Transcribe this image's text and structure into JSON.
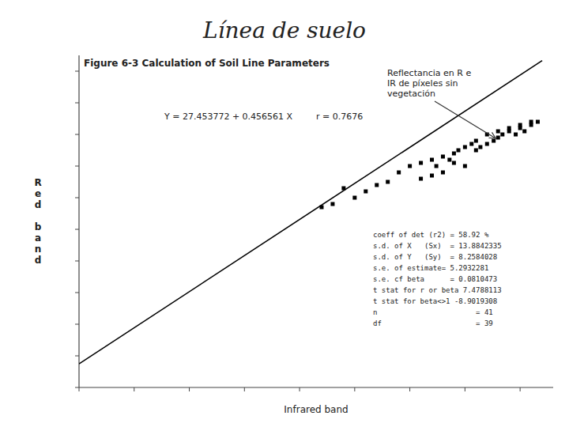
{
  "chart_data": {
    "type": "scatter",
    "title": "Línea de suelo",
    "subtitle": "Figure 6-3  Calculation of Soil Line Parameters",
    "x_label": "Infrared band",
    "y_label": "R\ne\nd\n\nb\na\nn\nd",
    "annotations": [
      {
        "text": "Y = 27.453772 + 0.456561 X"
      },
      {
        "text": "r = 0.7676"
      },
      {
        "text": "Reflectancia en R e\nIR de píxeles sin\nvegetación",
        "x": 190,
        "y": 98
      },
      {
        "text": "coeff of det (r2) = 58.92 %\ns.d. of X   (Sx)  = 13.8842335\ns.d. of Y   (Sy)  = 8.2584028\ns.e. of estimate= 5.2932281\ns.e. cf beta      = 0.0810473\nt stat for r or beta 7.4788113\nt stat for beta<>1 -8.9019308\nn                       = 41\ndf                      = 39"
      }
    ],
    "series": [
      {
        "type": "scatter",
        "color": "#000000",
        "marker": "square",
        "x": [
          120,
          130,
          145,
          150,
          155,
          160,
          162,
          165,
          168,
          170,
          172,
          175,
          178,
          180,
          182,
          185,
          188,
          190,
          192,
          195,
          198,
          200,
          202,
          205,
          208,
          110,
          115,
          125,
          135,
          140,
          175,
          180,
          185,
          190,
          195,
          200,
          205,
          165,
          170,
          160,
          155
        ],
        "values": [
          83,
          82,
          88,
          90,
          91,
          92,
          90,
          93,
          92,
          94,
          95,
          96,
          97,
          98,
          96,
          97,
          98,
          99,
          100,
          101,
          100,
          102,
          101,
          103,
          104,
          77,
          78,
          80,
          84,
          85,
          90,
          95,
          100,
          101,
          102,
          103,
          104,
          88,
          91,
          87,
          86
        ]
      },
      {
        "type": "line",
        "color": "#000000",
        "line_style": "solid",
        "x": [
          0,
          210
        ],
        "values": [
          27.453772,
          123.331582
        ]
      }
    ],
    "xlim": [
      0,
      215
    ],
    "xticks": [
      0,
      25,
      50,
      75,
      100,
      125,
      150,
      175,
      200
    ],
    "ylim": [
      20,
      125
    ],
    "yticks": [
      20,
      30,
      40,
      50,
      60,
      70,
      80,
      90,
      100,
      110,
      120
    ],
    "tick_labels": false,
    "grid": false
  }
}
